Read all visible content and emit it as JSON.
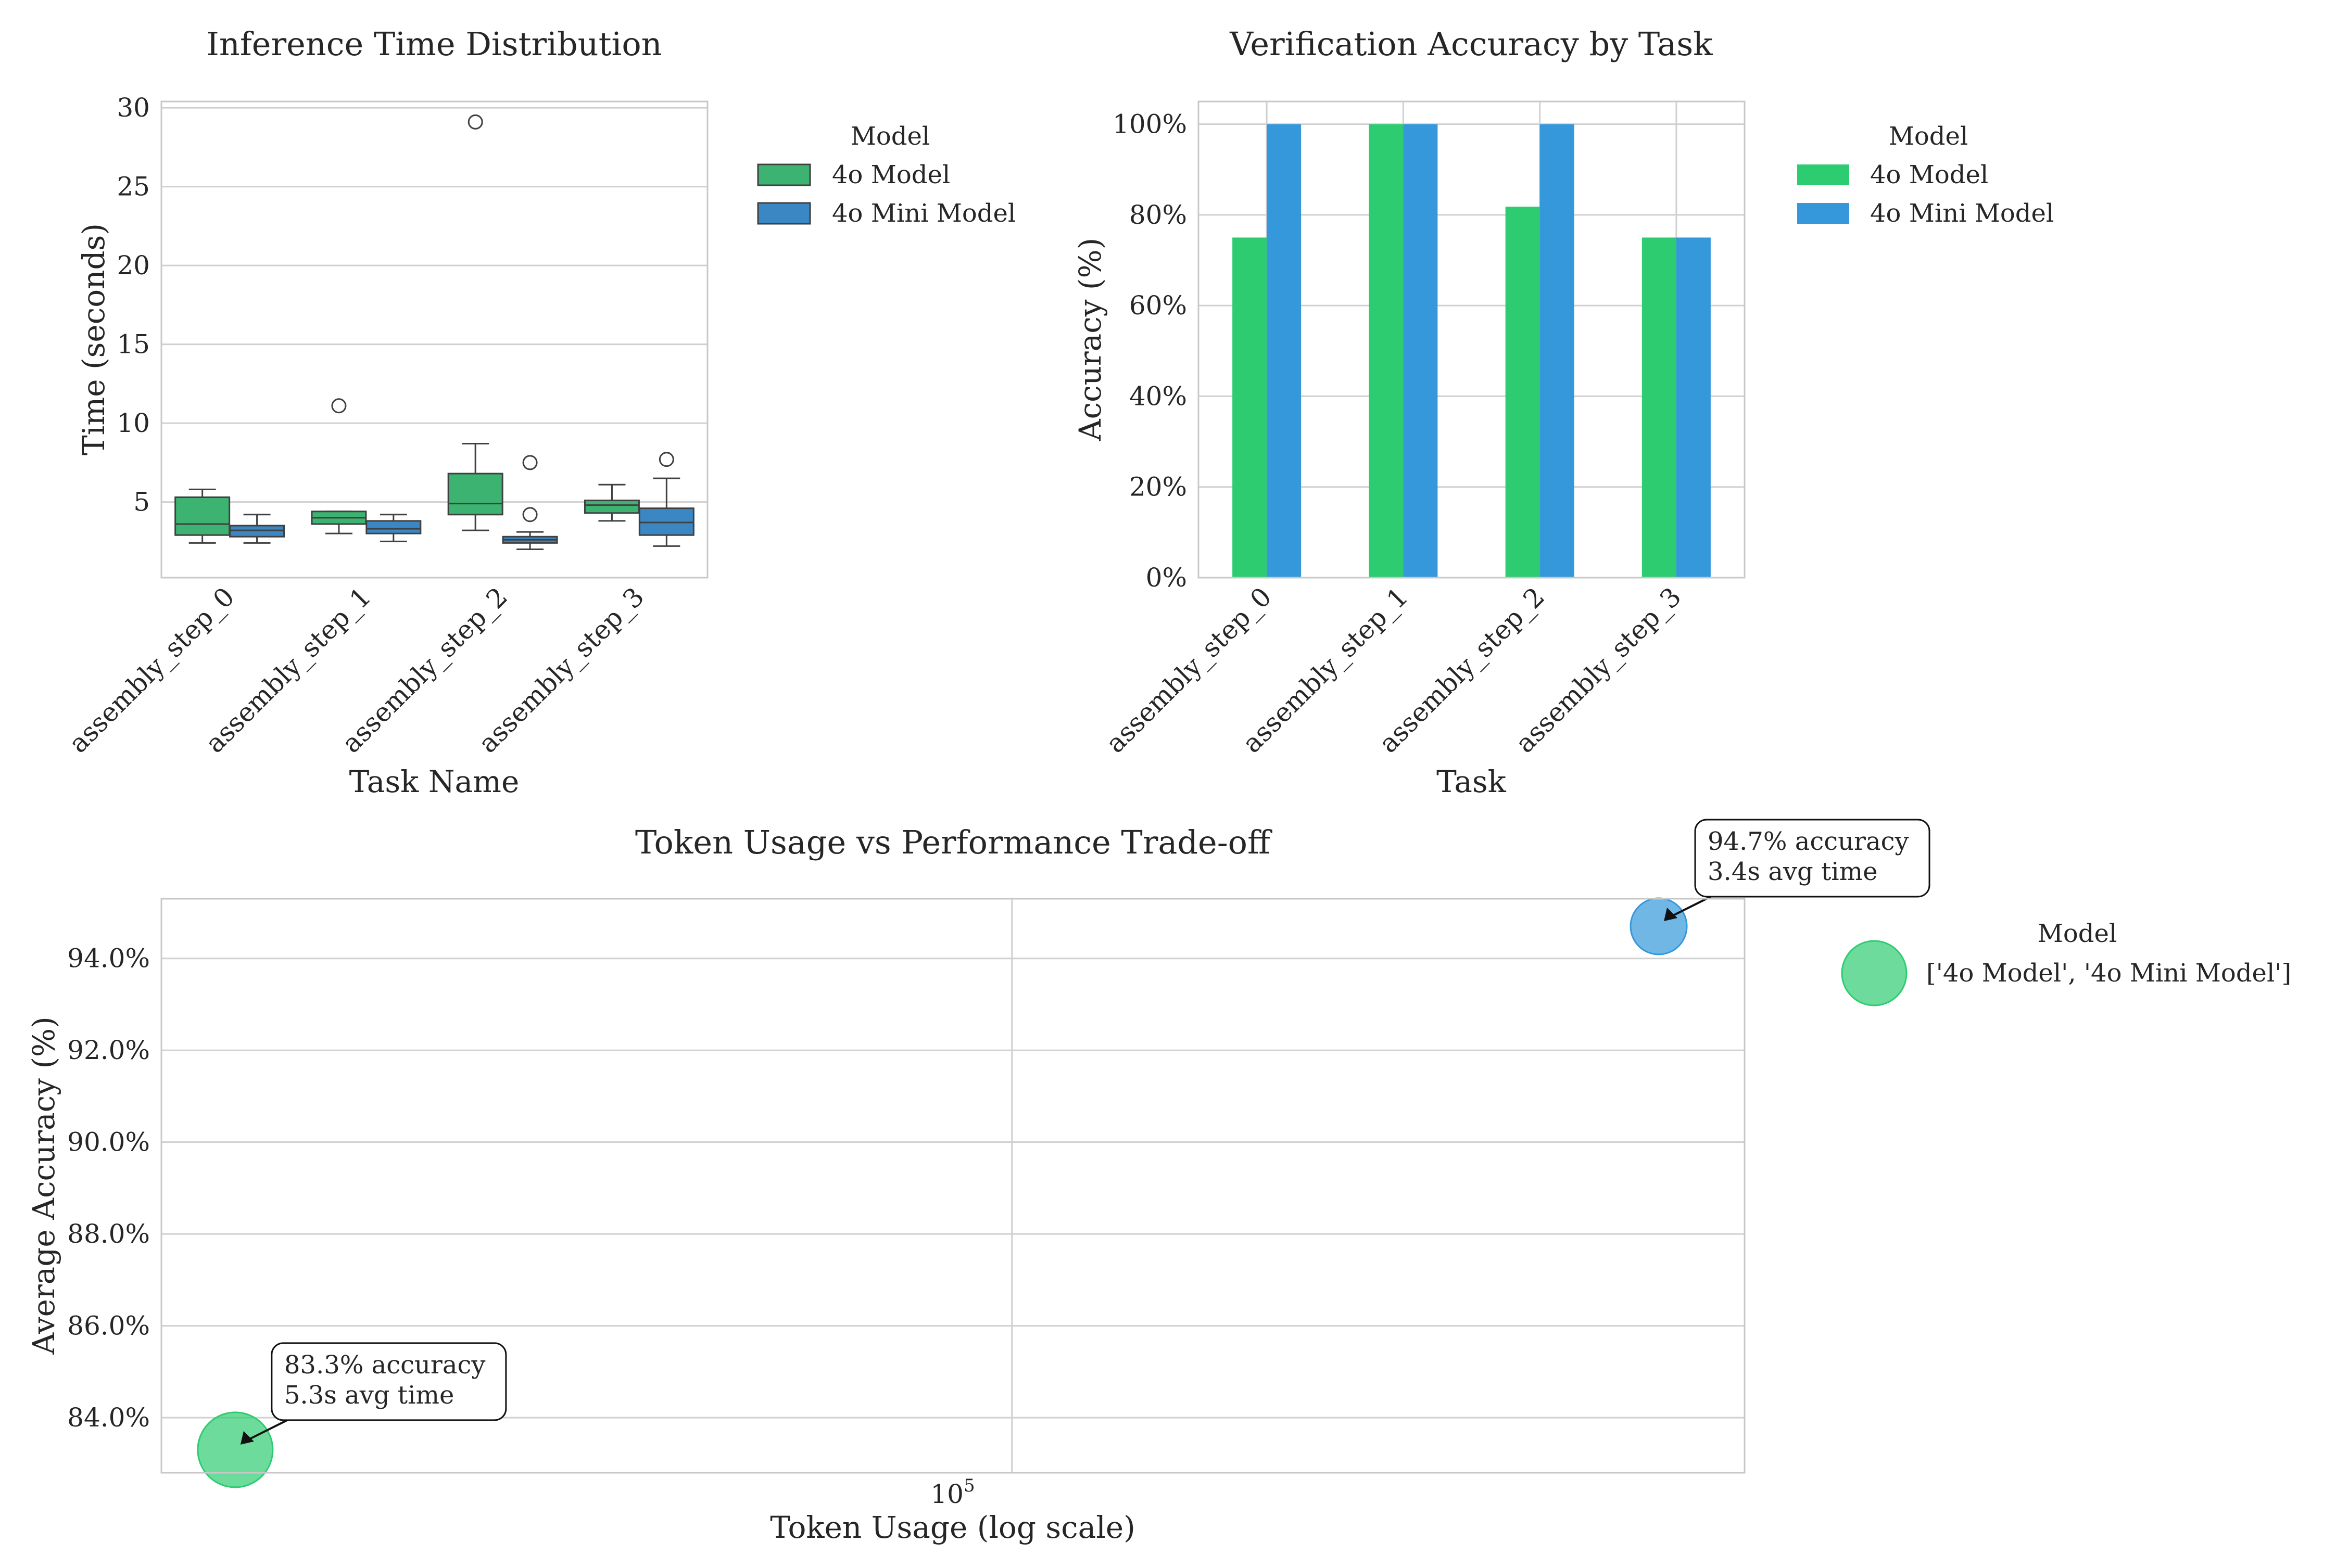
{
  "colors": {
    "green": "#2ecc71",
    "blue": "#3498db",
    "box_green": "#3cb371",
    "box_blue": "#3a87c4",
    "grid": "#d0d0d0",
    "spine": "#c8c8c8",
    "text": "#262626"
  },
  "chart_data": [
    {
      "type": "box",
      "title": "Inference Time Distribution",
      "xlabel": "Task Name",
      "ylabel": "Time (seconds)",
      "ylim": [
        0.2,
        30.4
      ],
      "yticks": [
        "5",
        "10",
        "15",
        "20",
        "25",
        "30"
      ],
      "categories": [
        "assembly_step_0",
        "assembly_step_1",
        "assembly_step_2",
        "assembly_step_3"
      ],
      "legend": {
        "title": "Model",
        "placement": "outside-right",
        "entries": [
          "4o Model",
          "4o Mini Model"
        ]
      },
      "grid": "y",
      "series": [
        {
          "name": "4o Model",
          "boxes": [
            {
              "whislo": 2.4,
              "q1": 2.9,
              "med": 3.6,
              "q3": 5.3,
              "whishi": 5.8,
              "fliers": []
            },
            {
              "whislo": 3.0,
              "q1": 3.6,
              "med": 4.0,
              "q3": 4.4,
              "whishi": 4.4,
              "fliers": [
                11.1
              ]
            },
            {
              "whislo": 3.2,
              "q1": 4.2,
              "med": 4.9,
              "q3": 6.8,
              "whishi": 8.7,
              "fliers": [
                29.1
              ]
            },
            {
              "whislo": 3.8,
              "q1": 4.3,
              "med": 4.8,
              "q3": 5.1,
              "whishi": 6.1,
              "fliers": []
            }
          ]
        },
        {
          "name": "4o Mini Model",
          "boxes": [
            {
              "whislo": 2.4,
              "q1": 2.8,
              "med": 3.2,
              "q3": 3.5,
              "whishi": 4.2,
              "fliers": []
            },
            {
              "whislo": 2.5,
              "q1": 3.0,
              "med": 3.3,
              "q3": 3.8,
              "whishi": 4.2,
              "fliers": []
            },
            {
              "whislo": 2.0,
              "q1": 2.4,
              "med": 2.6,
              "q3": 2.8,
              "whishi": 3.1,
              "fliers": [
                7.5,
                4.2
              ]
            },
            {
              "whislo": 2.2,
              "q1": 2.9,
              "med": 3.7,
              "q3": 4.6,
              "whishi": 6.5,
              "fliers": [
                7.7
              ]
            }
          ]
        }
      ]
    },
    {
      "type": "bar",
      "title": "Verification Accuracy by Task",
      "xlabel": "Task",
      "ylabel": "Accuracy (%)",
      "ylim": [
        0,
        1.05
      ],
      "yticks": [
        "0%",
        "20%",
        "40%",
        "60%",
        "80%",
        "100%"
      ],
      "categories": [
        "assembly_step_0",
        "assembly_step_1",
        "assembly_step_2",
        "assembly_step_3"
      ],
      "legend": {
        "title": "Model",
        "placement": "outside-right",
        "entries": [
          "4o Model",
          "4o Mini Model"
        ]
      },
      "grid": "both",
      "series": [
        {
          "name": "4o Model",
          "values": [
            0.75,
            1.0,
            0.818,
            0.75
          ]
        },
        {
          "name": "4o Mini Model",
          "values": [
            1.0,
            1.0,
            1.0,
            0.75
          ]
        }
      ]
    },
    {
      "type": "scatter",
      "title": "Token Usage vs Performance Trade-off",
      "xlabel": "Token Usage (log scale)",
      "ylabel": "Average Accuracy (%)",
      "xscale": "log",
      "xlim": [
        20000,
        400000
      ],
      "ylim": [
        82.8,
        95.3
      ],
      "xticks_base": "10",
      "xticks_exp": "5",
      "yticks": [
        "84.0%",
        "86.0%",
        "88.0%",
        "90.0%",
        "92.0%",
        "94.0%"
      ],
      "legend": {
        "title": "Model",
        "placement": "outside-right",
        "entries": [
          "['4o Model', '4o Mini Model']"
        ]
      },
      "grid": "both",
      "points": [
        {
          "name": "4o Model",
          "x": 23000,
          "y": 83.3,
          "annotation": [
            "83.3% accuracy",
            "5.3s avg time"
          ]
        },
        {
          "name": "4o Mini Model",
          "x": 340000,
          "y": 94.7,
          "annotation": [
            "94.7% accuracy",
            "3.4s avg time"
          ]
        }
      ]
    }
  ]
}
